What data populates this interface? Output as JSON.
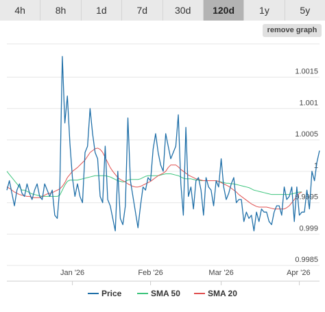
{
  "tabs": [
    {
      "label": "4h",
      "active": false
    },
    {
      "label": "8h",
      "active": false
    },
    {
      "label": "1d",
      "active": false
    },
    {
      "label": "7d",
      "active": false
    },
    {
      "label": "30d",
      "active": false
    },
    {
      "label": "120d",
      "active": true
    },
    {
      "label": "1y",
      "active": false
    },
    {
      "label": "5y",
      "active": false
    }
  ],
  "remove_graph_label": "remove graph",
  "chart_data": {
    "type": "line",
    "title": "",
    "xlabel": "",
    "ylabel": "",
    "ylim": [
      0.99825,
      1.00203
    ],
    "y_ticks": [
      "1.0015",
      "1.001",
      "1.0005",
      "1",
      "0.9995",
      "0.999",
      "0.9985"
    ],
    "y_tick_values": [
      1.0015,
      1.001,
      1.0005,
      1.0,
      0.9995,
      0.999,
      0.9985
    ],
    "x_ticks": [
      {
        "label": "Jan '26",
        "index": 26
      },
      {
        "label": "Feb '26",
        "index": 57
      },
      {
        "label": "Mar '26",
        "index": 85
      },
      {
        "label": "Apr '26",
        "index": 116
      }
    ],
    "grid": true,
    "legend_position": "bottom",
    "series": [
      {
        "name": "Price",
        "color": "#1f6fa8",
        "values": [
          0.9997,
          0.99985,
          0.99965,
          0.99945,
          0.9997,
          0.9998,
          0.99965,
          0.9996,
          0.9998,
          0.99965,
          0.99955,
          0.9997,
          0.9998,
          0.9996,
          0.99955,
          0.9998,
          0.9997,
          0.9996,
          0.9997,
          0.9993,
          0.99925,
          0.99975,
          1.00183,
          1.00077,
          1.0012,
          1.00045,
          0.9999,
          0.9996,
          0.9998,
          0.9996,
          0.9995,
          1.0003,
          1.0004,
          1.001,
          1.0006,
          1.0003,
          1.0002,
          0.9996,
          0.9995,
          1.0004,
          0.99955,
          0.99945,
          0.99925,
          0.99905,
          1.0,
          0.99925,
          0.99915,
          0.99945,
          1.00085,
          0.99985,
          0.9996,
          0.99935,
          0.9991,
          0.99945,
          0.99975,
          0.9997,
          0.9999,
          0.99985,
          1.00035,
          1.0006,
          1.0003,
          1.0001,
          1.0,
          1.0006,
          1.0004,
          1.0002,
          1.0003,
          1.0004,
          1.0009,
          0.9998,
          0.9993,
          1.0007,
          0.9996,
          0.99975,
          0.9994,
          0.99985,
          0.9999,
          0.9997,
          0.9993,
          0.9999,
          0.99975,
          0.9997,
          0.99945,
          0.99985,
          0.99975,
          1.0002,
          0.99975,
          0.99955,
          0.99965,
          0.9998,
          0.9999,
          0.9995,
          0.99955,
          0.99955,
          0.9992,
          0.99935,
          0.99925,
          0.9993,
          0.99905,
          0.99935,
          0.9992,
          0.9994,
          0.99935,
          0.99935,
          0.9992,
          0.99915,
          0.99935,
          0.99945,
          0.99945,
          0.9993,
          0.99975,
          0.99955,
          0.9996,
          0.99975,
          0.9992,
          0.99975,
          0.9993,
          0.99935,
          0.99935,
          0.9997,
          0.9994,
          1.0,
          0.99985,
          1.00015,
          1.00033
        ]
      },
      {
        "name": "SMA 50",
        "color": "#3cc47c",
        "values": [
          1.0,
          0.99995,
          0.9999,
          0.99985,
          0.9998,
          0.99975,
          0.9997,
          0.9997,
          0.99968,
          0.99966,
          0.99964,
          0.99963,
          0.99962,
          0.99961,
          0.9996,
          0.9996,
          0.9996,
          0.9996,
          0.9996,
          0.9996,
          0.9996,
          0.99962,
          0.9997,
          0.99978,
          0.99984,
          0.99986,
          0.99986,
          0.99986,
          0.99986,
          0.99987,
          0.99988,
          0.99989,
          0.9999,
          0.99991,
          0.99992,
          0.99993,
          0.99993,
          0.99993,
          0.99993,
          0.99993,
          0.99992,
          0.99991,
          0.99989,
          0.99987,
          0.99985,
          0.99984,
          0.99983,
          0.99984,
          0.99986,
          0.99987,
          0.99987,
          0.99987,
          0.99987,
          0.99988,
          0.9999,
          0.99992,
          0.99993,
          0.99993,
          0.99993,
          0.99993,
          0.99993,
          0.99994,
          0.99995,
          0.99996,
          0.99996,
          0.99996,
          0.99995,
          0.99994,
          0.99993,
          0.99991,
          0.99989,
          0.99988,
          0.99988,
          0.99988,
          0.99987,
          0.99986,
          0.99986,
          0.99985,
          0.99985,
          0.99985,
          0.99985,
          0.99985,
          0.99985,
          0.99985,
          0.99984,
          0.99983,
          0.99982,
          0.99981,
          0.99981,
          0.9998,
          0.9998,
          0.99979,
          0.99978,
          0.99977,
          0.99976,
          0.99975,
          0.99974,
          0.99972,
          0.9997,
          0.99969,
          0.99968,
          0.99967,
          0.99966,
          0.99965,
          0.99964,
          0.99963,
          0.99963,
          0.99963,
          0.99963,
          0.99963,
          0.99963,
          0.99963,
          0.99963,
          0.99964,
          0.99965,
          0.99966,
          0.99967,
          0.99967
        ]
      },
      {
        "name": "SMA 20",
        "color": "#e05050",
        "values": [
          0.99975,
          0.99973,
          0.9997,
          0.99967,
          0.99965,
          0.99963,
          0.99962,
          0.99961,
          0.9996,
          0.9996,
          0.99958,
          0.99958,
          0.99958,
          0.99958,
          0.9996,
          0.99962,
          0.99964,
          0.99965,
          0.99966,
          0.99968,
          0.9997,
          0.99972,
          0.99976,
          0.99982,
          0.9999,
          0.99995,
          1.0,
          1.00003,
          1.00006,
          1.0001,
          1.00014,
          1.00018,
          1.00024,
          1.0003,
          1.00033,
          1.00036,
          1.00037,
          1.00035,
          1.0003,
          1.00022,
          1.00014,
          1.00006,
          1.0,
          0.99995,
          0.9999,
          0.99987,
          0.99985,
          0.99983,
          0.9998,
          0.99978,
          0.99976,
          0.99975,
          0.99975,
          0.99976,
          0.99978,
          0.9998,
          0.99982,
          0.99984,
          0.99987,
          0.9999,
          0.99993,
          0.99995,
          0.99997,
          1.0,
          1.00006,
          1.0001,
          1.0001,
          1.0001,
          1.00007,
          1.00003,
          1.0,
          0.99997,
          0.99994,
          0.99992,
          0.9999,
          0.99988,
          0.99987,
          0.99986,
          0.99985,
          0.99985,
          0.99985,
          0.99985,
          0.99985,
          0.99985,
          0.99984,
          0.99982,
          0.9998,
          0.99978,
          0.99976,
          0.99973,
          0.9997,
          0.99967,
          0.99963,
          0.9996,
          0.99957,
          0.99954,
          0.99951,
          0.99948,
          0.99946,
          0.99944,
          0.99943,
          0.99943,
          0.99943,
          0.99943,
          0.99942,
          0.99941,
          0.9994,
          0.9994,
          0.9994,
          0.9994,
          0.9994,
          0.99942,
          0.99945,
          0.9995,
          0.99955,
          0.9996,
          0.99965,
          0.99967
        ]
      }
    ]
  }
}
